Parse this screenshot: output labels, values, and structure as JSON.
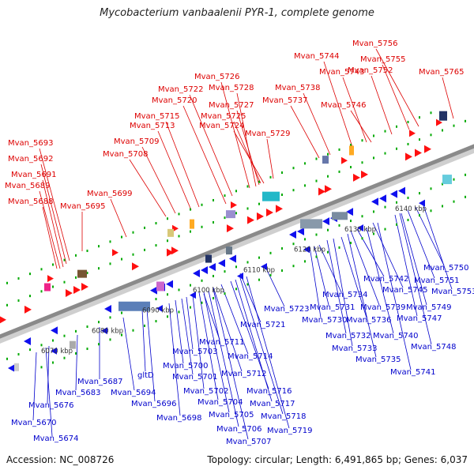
{
  "title": "Mycobacterium vanbaalenii PYR-1, complete genome",
  "footer": {
    "accession": "Accession: NC_008726",
    "summary": "Topology: circular; Length: 6,491,865 bp; Genes: 6,037"
  },
  "colors": {
    "forward_label": "#dd0000",
    "reverse_label": "#0000cc",
    "forward_arrow": "#ff1010",
    "reverse_arrow": "#1010ee",
    "backbone": "#8a8a8a",
    "tick": "#00aa00"
  },
  "ticks": [
    "6070 kbp",
    "6080 kbp",
    "6090 kbp",
    "6100 kbp",
    "6110 kbp",
    "6120 kbp",
    "6130 kbp",
    "6140 kbp"
  ],
  "forward_labels": [
    "Mvan_5693",
    "Mvan_5692",
    "Mvan_5691",
    "Mvan_5689",
    "Mvan_5688",
    "Mvan_5695",
    "Mvan_5699",
    "Mvan_5708",
    "Mvan_5709",
    "Mvan_5713",
    "Mvan_5715",
    "Mvan_5720",
    "Mvan_5722",
    "Mvan_5726",
    "Mvan_5728",
    "Mvan_5727",
    "Mvan_5725",
    "Mvan_5724",
    "Mvan_5729",
    "Mvan_5737",
    "Mvan_5738",
    "Mvan_5744",
    "Mvan_5743",
    "Mvan_5746",
    "Mvan_5756",
    "Mvan_5755",
    "Mvan_5752",
    "Mvan_5765"
  ],
  "reverse_labels": [
    "Mvan_5670",
    "Mvan_5674",
    "Mvan_5676",
    "Mvan_5683",
    "Mvan_5687",
    "Mvan_5694",
    "gltD",
    "Mvan_5696",
    "Mvan_5698",
    "Mvan_5700",
    "Mvan_5701",
    "Mvan_5702",
    "Mvan_5703",
    "Mvan_5704",
    "Mvan_5705",
    "Mvan_5706",
    "Mvan_5707",
    "Mvan_5711",
    "Mvan_5712",
    "Mvan_5714",
    "Mvan_5716",
    "Mvan_5717",
    "Mvan_5718",
    "Mvan_5719",
    "Mvan_5721",
    "Mvan_5723",
    "Mvan_5730",
    "Mvan_5731",
    "Mvan_5732",
    "Mvan_5733",
    "Mvan_5734",
    "Mvan_5735",
    "Mvan_5736",
    "Mvan_5739",
    "Mvan_5740",
    "Mvan_5741",
    "Mvan_5742",
    "Mvan_5745",
    "Mvan_5747",
    "Mvan_5748",
    "Mvan_5749",
    "Mvan_5750",
    "Mvan_5751",
    "Mvan_5753"
  ]
}
